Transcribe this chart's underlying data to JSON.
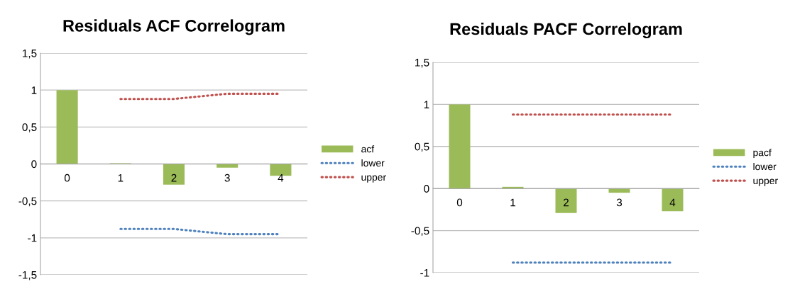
{
  "chart_data": [
    {
      "type": "bar",
      "title": "Residuals ACF Correlogram",
      "categories": [
        "0",
        "1",
        "2",
        "3",
        "4"
      ],
      "series": [
        {
          "name": "acf",
          "color": "#9bbb59",
          "values": [
            1,
            0.01,
            -0.28,
            -0.05,
            -0.16
          ]
        },
        {
          "name": "lower",
          "type": "line",
          "color": "#4f81bd",
          "line_style": "dotted",
          "values": [
            null,
            -0.88,
            -0.88,
            -0.95,
            -0.95
          ]
        },
        {
          "name": "upper",
          "type": "line",
          "color": "#c0504d",
          "line_style": "dotted",
          "values": [
            null,
            0.88,
            0.88,
            0.95,
            0.95
          ]
        }
      ],
      "ylim": [
        -1.5,
        1.5
      ],
      "yticks": [
        {
          "value": -1.5,
          "label": "-1,5"
        },
        -1,
        {
          "value": -0.5,
          "label": "-0,5"
        },
        0,
        {
          "value": 0.5,
          "label": "0,5"
        },
        1,
        {
          "value": 1.5,
          "label": "1,5"
        }
      ],
      "grid": "y",
      "legend": "right",
      "marker": "none"
    },
    {
      "type": "bar",
      "title": "Residuals PACF Correlogram",
      "categories": [
        "0",
        "1",
        "2",
        "3",
        "4"
      ],
      "series": [
        {
          "name": "pacf",
          "color": "#9bbb59",
          "values": [
            1,
            0.02,
            -0.29,
            -0.05,
            -0.27
          ]
        },
        {
          "name": "lower",
          "type": "line",
          "color": "#4f81bd",
          "line_style": "dotted",
          "values": [
            null,
            -0.88,
            -0.88,
            -0.88,
            -0.88
          ]
        },
        {
          "name": "upper",
          "type": "line",
          "color": "#c0504d",
          "line_style": "dotted",
          "values": [
            null,
            0.88,
            0.88,
            0.88,
            0.88
          ]
        }
      ],
      "ylim": [
        -1,
        1.5
      ],
      "yticks": [
        -1,
        {
          "value": -0.5,
          "label": "-0,5"
        },
        0,
        {
          "value": 0.5,
          "label": "0,5"
        },
        1,
        {
          "value": 1.5,
          "label": "1,5"
        }
      ],
      "grid": "y",
      "legend": "right",
      "marker": "none"
    }
  ]
}
